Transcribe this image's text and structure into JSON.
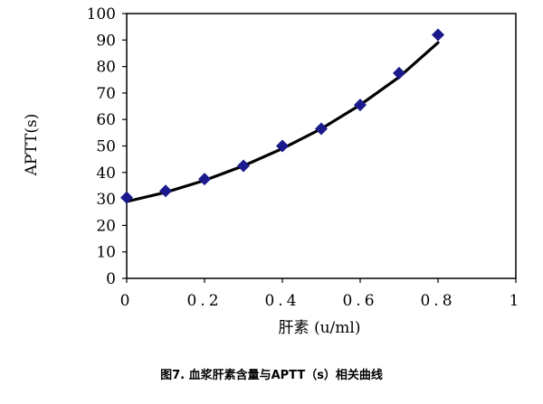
{
  "chart_data": {
    "type": "scatter",
    "title": "",
    "xlabel": "肝素 (u/ml)",
    "ylabel": "APTT(s)",
    "xlim": [
      0,
      1
    ],
    "ylim": [
      0,
      100
    ],
    "x_ticks": [
      "0",
      "0.2",
      "0.4",
      "0.6",
      "0.8",
      "1"
    ],
    "y_ticks": [
      "0",
      "10",
      "20",
      "30",
      "40",
      "50",
      "60",
      "70",
      "80",
      "90",
      "100"
    ],
    "grid": false,
    "legend": "none",
    "series": [
      {
        "kind": "scatter",
        "marker": "diamond",
        "color": "#1a1a8c",
        "x": [
          0,
          0.1,
          0.2,
          0.3,
          0.4,
          0.5,
          0.6,
          0.7,
          0.8
        ],
        "y": [
          30.5,
          33,
          37.5,
          42.5,
          50,
          56.5,
          65.5,
          77.5,
          92
        ]
      },
      {
        "kind": "trendline",
        "color": "#000000",
        "x": [
          0,
          0.1,
          0.2,
          0.3,
          0.4,
          0.5,
          0.6,
          0.7,
          0.8
        ],
        "y": [
          29,
          32.5,
          37,
          42.5,
          49,
          56.5,
          65.5,
          76,
          89
        ]
      }
    ]
  },
  "caption": "图7. 血浆肝素含量与APTT（s）相关曲线"
}
